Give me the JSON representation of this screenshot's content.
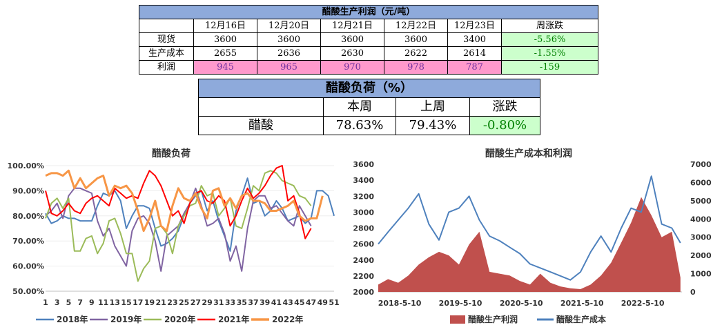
{
  "profit_table": {
    "title": "醋酸生产利润（元/吨）",
    "headers": [
      "12月16日",
      "12月20日",
      "12月21日",
      "12月22日",
      "12月23日",
      "周涨跌"
    ],
    "rows": [
      {
        "label": "现货",
        "values": [
          "3600",
          "3600",
          "3600",
          "3600",
          "3400"
        ],
        "change": "-5.56%"
      },
      {
        "label": "生产成本",
        "values": [
          "2655",
          "2636",
          "2630",
          "2622",
          "2614"
        ],
        "change": "-1.55%"
      },
      {
        "label": "利润",
        "values": [
          "945",
          "965",
          "970",
          "978",
          "787"
        ],
        "change": "-159"
      }
    ],
    "colors": {
      "header": "#8eaadb",
      "profit_cells": "#ff99cc",
      "change_cells": "#ccffcc"
    }
  },
  "load_table": {
    "title": "醋酸负荷（%）",
    "headers": [
      "本周",
      "上周",
      "涨跌"
    ],
    "row": {
      "label": "醋酸",
      "values": [
        "78.63%",
        "79.43%"
      ],
      "change": "-0.80%"
    }
  },
  "chart_data": [
    {
      "type": "line",
      "title": "醋酸负荷",
      "xlabel": "",
      "ylabel": "",
      "x": [
        1,
        2,
        3,
        4,
        5,
        6,
        7,
        8,
        9,
        10,
        11,
        12,
        13,
        14,
        15,
        16,
        17,
        18,
        19,
        20,
        21,
        22,
        23,
        24,
        25,
        26,
        27,
        28,
        29,
        30,
        31,
        32,
        33,
        34,
        35,
        36,
        37,
        38,
        39,
        40,
        41,
        42,
        43,
        44,
        45,
        46,
        47,
        48,
        49,
        50,
        51
      ],
      "x_tick_labels": [
        "1",
        "3",
        "5",
        "7",
        "9",
        "11",
        "13",
        "15",
        "17",
        "19",
        "21",
        "23",
        "25",
        "27",
        "29",
        "31",
        "33",
        "35",
        "37",
        "39",
        "41",
        "43",
        "45",
        "47",
        "49",
        "51"
      ],
      "ylim": [
        50,
        100
      ],
      "y_tick_labels": [
        "50.00%",
        "60.00%",
        "70.00%",
        "80.00%",
        "90.00%",
        "100.00%"
      ],
      "legend_position": "bottom",
      "series": [
        {
          "name": "2018年",
          "color": "#4e81bd",
          "values": [
            81,
            77,
            78,
            80,
            79,
            79,
            78,
            78,
            78,
            84,
            89,
            88,
            90,
            86,
            75,
            80,
            84,
            84,
            83,
            75,
            68,
            69,
            71,
            74,
            80,
            85,
            88,
            90,
            82,
            86,
            78,
            72,
            66,
            82,
            88,
            95,
            85,
            86,
            80,
            82,
            86,
            83,
            78,
            79,
            80,
            77,
            79,
            90,
            90,
            88,
            80
          ]
        },
        {
          "name": "2019年",
          "color": "#8064a2",
          "values": [
            80,
            82,
            85,
            79,
            88,
            91,
            91,
            90,
            89,
            78,
            72,
            75,
            68,
            64,
            60,
            74,
            79,
            80,
            77,
            70,
            58,
            72,
            74,
            76,
            81,
            85,
            91,
            84,
            76,
            77,
            79,
            73,
            62,
            68,
            58,
            75,
            86,
            88,
            88,
            83,
            84,
            81,
            78,
            76,
            84,
            80,
            76,
            null,
            null,
            null,
            null
          ]
        },
        {
          "name": "2020年",
          "color": "#9bbb59",
          "values": [
            79,
            85,
            87,
            83,
            87,
            66,
            66,
            71,
            72,
            65,
            69,
            78,
            79,
            73,
            65,
            65,
            54,
            59,
            62,
            75,
            76,
            73,
            65,
            76,
            80,
            84,
            85,
            92,
            88,
            89,
            80,
            83,
            87,
            76,
            75,
            83,
            92,
            90,
            97,
            98,
            97,
            94,
            93,
            92,
            88,
            87,
            84,
            null,
            null,
            null,
            null
          ]
        },
        {
          "name": "2021年",
          "color": "#ff0000",
          "values": [
            90,
            81,
            80,
            82,
            85,
            82,
            81,
            85,
            87,
            88,
            86,
            84,
            91,
            89,
            87,
            88,
            87,
            93,
            98,
            96,
            92,
            86,
            80,
            82,
            77,
            85,
            89,
            90,
            86,
            85,
            88,
            86,
            76,
            80,
            86,
            91,
            87,
            89,
            92,
            96,
            99,
            100,
            86,
            88,
            81,
            71,
            75,
            null,
            null,
            null,
            null
          ]
        },
        {
          "name": "2022年",
          "color": "#f79646",
          "values": [
            96,
            97,
            97,
            96,
            98,
            91,
            95,
            91,
            93,
            95,
            96,
            88,
            92,
            91,
            92,
            89,
            82,
            74,
            79,
            86,
            76,
            74,
            84,
            91,
            87,
            86,
            89,
            83,
            79,
            90,
            91,
            84,
            87,
            83,
            88,
            89,
            86,
            86,
            85,
            82,
            82,
            83,
            84,
            86,
            80,
            78,
            79,
            79,
            88,
            null,
            null
          ]
        }
      ]
    },
    {
      "type": "area+line",
      "title": "醋酸生产成本和利润",
      "x_tick_labels": [
        "2018-5-10",
        "2019-5-10",
        "2020-5-10",
        "2021-5-10",
        "2022-5-10"
      ],
      "x_range": [
        "2018-01-01",
        "2023-01-01"
      ],
      "left_ylim": [
        2000,
        3600
      ],
      "left_y_ticks": [
        2000,
        2200,
        2400,
        2600,
        2800,
        3000,
        3200,
        3400,
        3600
      ],
      "right_ylim": [
        0,
        7000
      ],
      "right_y_ticks": [
        0,
        1000,
        2000,
        3000,
        4000,
        5000,
        6000,
        7000
      ],
      "legend_position": "bottom",
      "series": [
        {
          "name": "醋酸生产利润",
          "type": "area",
          "axis": "right",
          "color": "#c0504d",
          "x": [
            "2018-01-01",
            "2018-03-01",
            "2018-05-01",
            "2018-07-01",
            "2018-09-01",
            "2018-11-01",
            "2019-01-01",
            "2019-03-01",
            "2019-05-01",
            "2019-07-01",
            "2019-09-01",
            "2019-11-01",
            "2020-01-01",
            "2020-03-01",
            "2020-05-01",
            "2020-07-01",
            "2020-09-01",
            "2020-11-01",
            "2021-01-01",
            "2021-03-01",
            "2021-05-01",
            "2021-07-01",
            "2021-09-01",
            "2021-11-01",
            "2022-01-01",
            "2022-03-01",
            "2022-05-01",
            "2022-07-01",
            "2022-09-01",
            "2022-11-01",
            "2022-12-23"
          ],
          "values": [
            400,
            700,
            500,
            900,
            1500,
            1900,
            2200,
            2000,
            1500,
            2600,
            3300,
            1100,
            1000,
            900,
            600,
            400,
            1000,
            500,
            300,
            200,
            150,
            400,
            900,
            1600,
            2700,
            3800,
            5200,
            4200,
            3000,
            3300,
            787
          ]
        },
        {
          "name": "醋酸生产成本",
          "type": "line",
          "axis": "left",
          "color": "#4e81bd",
          "x": [
            "2018-01-01",
            "2018-03-01",
            "2018-05-01",
            "2018-07-01",
            "2018-09-01",
            "2018-11-01",
            "2019-01-01",
            "2019-03-01",
            "2019-05-01",
            "2019-07-01",
            "2019-09-01",
            "2019-11-01",
            "2020-01-01",
            "2020-03-01",
            "2020-05-01",
            "2020-07-01",
            "2020-09-01",
            "2020-11-01",
            "2021-01-01",
            "2021-03-01",
            "2021-05-01",
            "2021-07-01",
            "2021-09-01",
            "2021-11-01",
            "2022-01-01",
            "2022-03-01",
            "2022-05-01",
            "2022-07-01",
            "2022-09-01",
            "2022-11-01",
            "2022-12-23"
          ],
          "values": [
            2600,
            2750,
            2900,
            3050,
            3230,
            2850,
            2650,
            3000,
            3050,
            3200,
            2900,
            2700,
            2640,
            2560,
            2480,
            2350,
            2300,
            2250,
            2200,
            2150,
            2250,
            2500,
            2700,
            2500,
            2800,
            3050,
            3000,
            3450,
            2850,
            2800,
            2614
          ]
        }
      ]
    }
  ]
}
